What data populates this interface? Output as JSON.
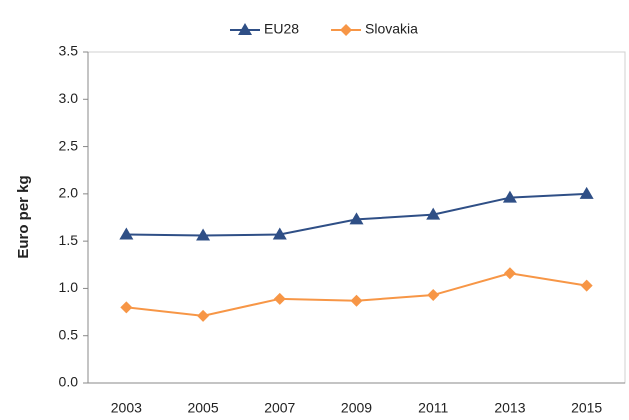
{
  "chart_data": {
    "type": "line",
    "y_label": "Euro per kg",
    "categories": [
      "2003",
      "2005",
      "2007",
      "2009",
      "2011",
      "2013",
      "2015"
    ],
    "series": [
      {
        "name": "EU28",
        "color": "#2f4f86",
        "marker": "triangle",
        "values": [
          1.57,
          1.56,
          1.57,
          1.73,
          1.78,
          1.96,
          2.0
        ]
      },
      {
        "name": "Slovakia",
        "color": "#f79646",
        "marker": "diamond",
        "values": [
          0.8,
          0.71,
          0.89,
          0.87,
          0.93,
          1.16,
          1.03
        ]
      }
    ],
    "ylim": [
      0,
      3.5
    ],
    "yticks": [
      {
        "value": 0,
        "label": "0.0"
      },
      0.5,
      {
        "value": 1,
        "label": "1.0"
      },
      1.5,
      {
        "value": 2,
        "label": "2.0"
      },
      2.5,
      {
        "value": 3,
        "label": "3.0"
      },
      3.5
    ],
    "legend": "top"
  }
}
